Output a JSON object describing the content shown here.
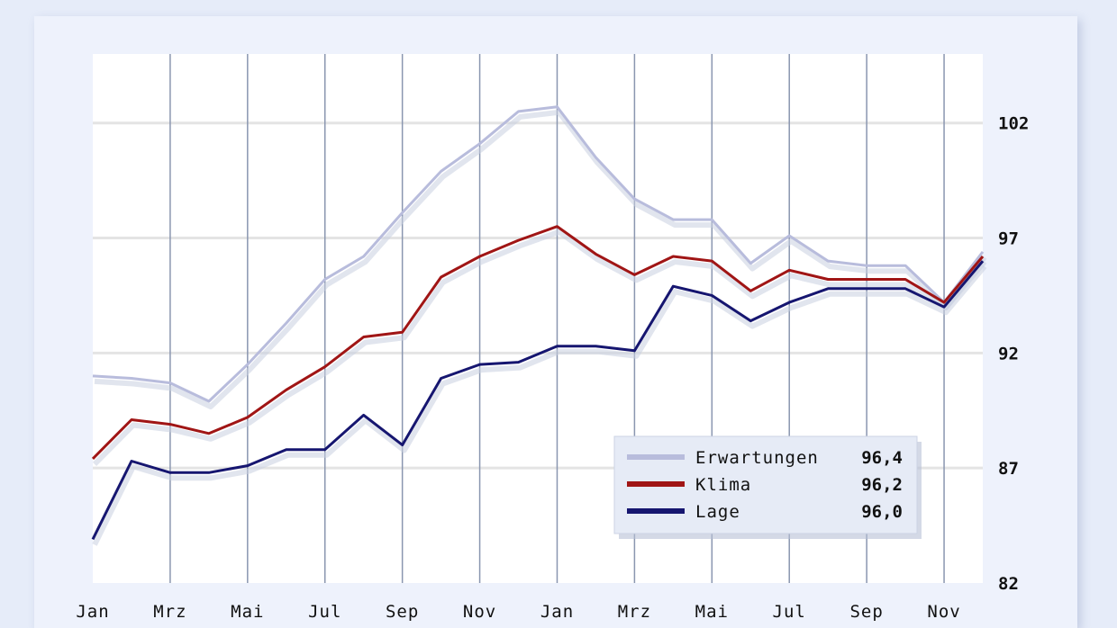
{
  "chart_data": {
    "type": "line",
    "categories": [
      "Jan",
      "Feb",
      "Mrz",
      "Apr",
      "Mai",
      "Jun",
      "Jul",
      "Aug",
      "Sep",
      "Okt",
      "Nov",
      "Dez",
      "Jan",
      "Feb",
      "Mrz",
      "Apr",
      "Mai",
      "Jun",
      "Jul",
      "Aug",
      "Sep",
      "Okt",
      "Nov",
      "Dez"
    ],
    "x_tick_labels": [
      "Jan",
      "Mrz",
      "Mai",
      "Jul",
      "Sep",
      "Nov",
      "Jan",
      "Mrz",
      "Mai",
      "Jul",
      "Sep",
      "Nov"
    ],
    "y_tick_labels": [
      "102",
      "97",
      "92",
      "87",
      "82"
    ],
    "ylim": [
      82,
      105
    ],
    "grid": true,
    "legend_position": "bottom-right",
    "series": [
      {
        "name": "Erwartungen",
        "display_value": "96,4",
        "color": "#b8bcdc",
        "values": [
          91.0,
          90.9,
          90.7,
          89.9,
          91.5,
          93.3,
          95.2,
          96.2,
          98.1,
          99.9,
          101.1,
          102.5,
          102.7,
          100.5,
          98.7,
          97.8,
          97.8,
          95.9,
          97.1,
          96.0,
          95.8,
          95.8,
          94.2,
          96.4
        ]
      },
      {
        "name": "Klima",
        "display_value": "96,2",
        "color": "#a01515",
        "values": [
          87.4,
          89.1,
          88.9,
          88.5,
          89.2,
          90.4,
          91.4,
          92.7,
          92.9,
          95.3,
          96.2,
          96.9,
          97.5,
          96.3,
          95.4,
          96.2,
          96.0,
          94.7,
          95.6,
          95.2,
          95.2,
          95.2,
          94.2,
          96.2
        ]
      },
      {
        "name": "Lage",
        "display_value": "96,0",
        "color": "#161670",
        "values": [
          83.9,
          87.3,
          86.8,
          86.8,
          87.1,
          87.8,
          87.8,
          89.3,
          88.0,
          90.9,
          91.5,
          91.6,
          92.3,
          92.3,
          92.1,
          94.9,
          94.5,
          93.4,
          94.2,
          94.8,
          94.8,
          94.8,
          94.0,
          96.0
        ]
      }
    ]
  }
}
